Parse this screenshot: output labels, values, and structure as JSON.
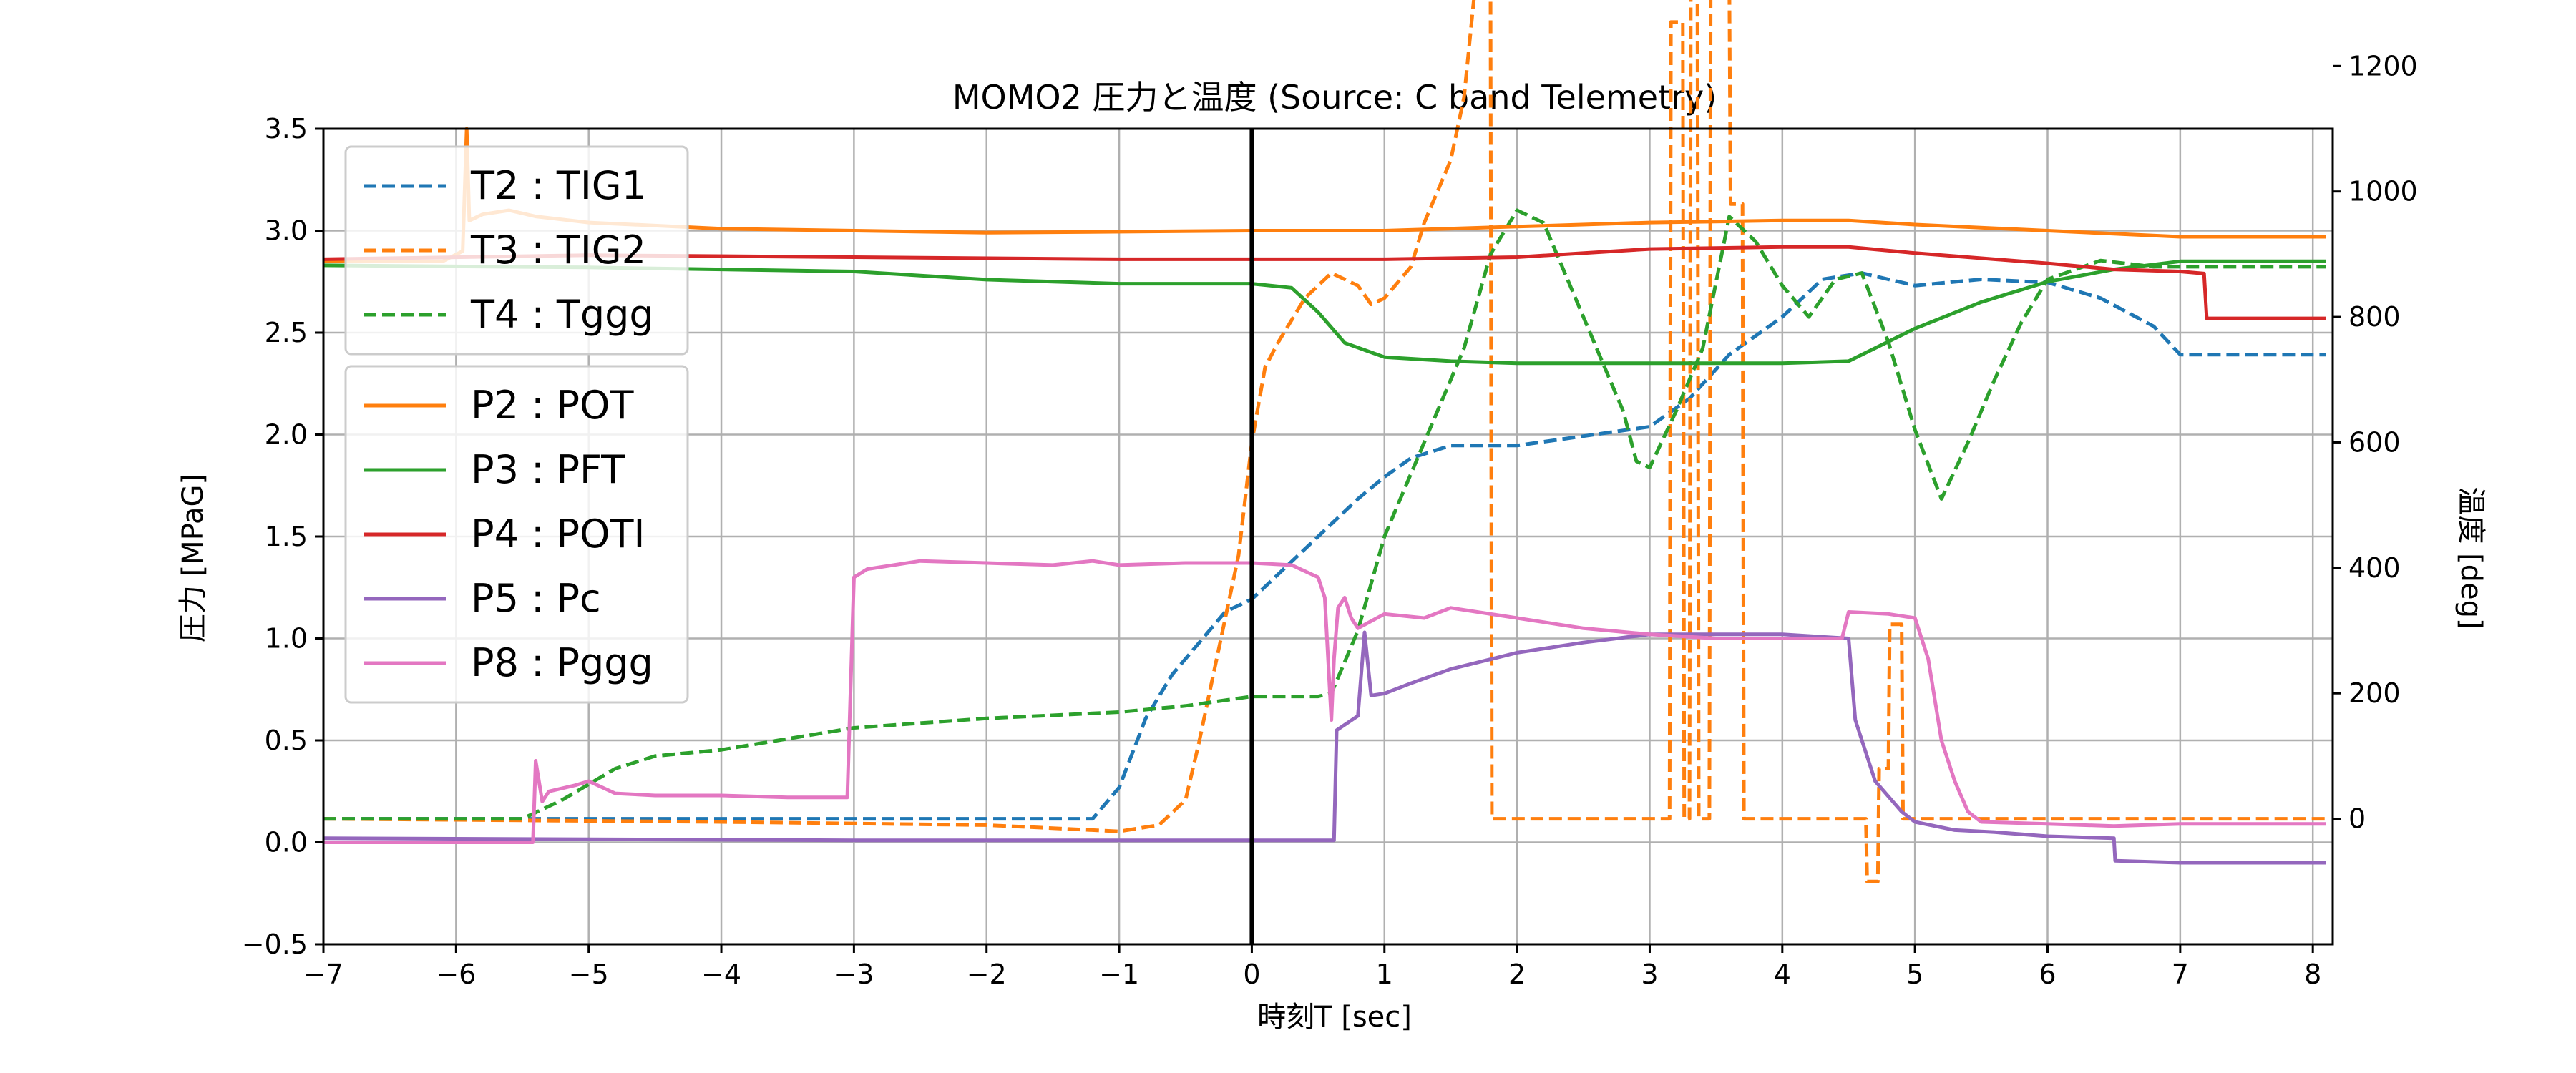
{
  "chart_data": {
    "type": "line",
    "title": "MOMO2 圧力と温度 (Source: C band Telemetry)",
    "xlabel": "時刻T [sec]",
    "ylabel": "圧力 [MPaG]",
    "ylabel_right": "温度 [deg]",
    "xlim": [
      -7,
      8.15
    ],
    "ylim": [
      -0.5,
      3.5
    ],
    "ylim_right": [
      -200,
      1100
    ],
    "x_ticks": [
      -7,
      -6,
      -5,
      -4,
      -3,
      -2,
      -1,
      0,
      1,
      2,
      3,
      4,
      5,
      6,
      7,
      8
    ],
    "x_tick_labels": [
      "−7",
      "−6",
      "−5",
      "−4",
      "−3",
      "−2",
      "−1",
      "0",
      "1",
      "2",
      "3",
      "4",
      "5",
      "6",
      "7",
      "8"
    ],
    "y_ticks": [
      -0.5,
      0.0,
      0.5,
      1.0,
      1.5,
      2.0,
      2.5,
      3.0,
      3.5
    ],
    "y_tick_labels": [
      "−0.5",
      "0.0",
      "0.5",
      "1.0",
      "1.5",
      "2.0",
      "2.5",
      "3.0",
      "3.5"
    ],
    "y2_ticks": [
      0,
      200,
      400,
      600,
      800,
      1000,
      1200
    ],
    "y2_tick_labels": [
      "0",
      "200",
      "400",
      "600",
      "800",
      "1000",
      "1200"
    ],
    "grid": true,
    "vline_x": 0,
    "legend_placement": "top-left",
    "temperature_series": [
      {
        "name": "T2 : TIG1",
        "color": "#1f77b4",
        "dash": true,
        "axis": "right",
        "x": [
          -7,
          -1.5,
          -1.2,
          -1.0,
          -0.8,
          -0.6,
          -0.4,
          -0.2,
          0.0,
          0.2,
          0.4,
          0.6,
          0.8,
          1.0,
          1.2,
          1.5,
          2.0,
          2.5,
          3.0,
          3.3,
          3.6,
          4.0,
          4.3,
          4.6,
          5.0,
          5.5,
          6.0,
          6.4,
          6.8,
          7.0,
          8.1
        ],
        "y": [
          0,
          0,
          0,
          50,
          160,
          230,
          280,
          330,
          350,
          390,
          430,
          470,
          510,
          545,
          575,
          595,
          595,
          610,
          625,
          670,
          740,
          800,
          860,
          870,
          850,
          860,
          855,
          830,
          785,
          740,
          740
        ]
      },
      {
        "name": "T3 : TIG2",
        "color": "#ff7f0e",
        "dash": true,
        "axis": "right",
        "x": [
          -7,
          -4,
          -2,
          -1,
          -0.7,
          -0.5,
          -0.4,
          -0.3,
          -0.2,
          -0.1,
          0.0,
          0.1,
          0.2,
          0.4,
          0.6,
          0.8,
          0.9,
          1.0,
          1.2,
          1.3,
          1.5,
          1.6,
          1.7,
          1.78,
          1.8,
          1.81,
          3.15,
          3.16,
          3.25,
          3.26,
          3.3,
          3.31,
          3.36,
          3.37,
          3.45,
          3.46,
          3.6,
          3.61,
          3.7,
          3.71,
          4.63,
          4.64,
          4.72,
          4.73,
          4.8,
          4.81,
          4.9,
          4.91,
          8.1
        ],
        "y": [
          0,
          -5,
          -10,
          -20,
          -10,
          30,
          120,
          220,
          320,
          420,
          600,
          720,
          760,
          830,
          870,
          850,
          820,
          830,
          880,
          950,
          1050,
          1150,
          1360,
          1360,
          1360,
          0,
          0,
          1270,
          1270,
          0,
          0,
          1340,
          1340,
          0,
          0,
          1350,
          1350,
          980,
          980,
          0,
          0,
          -100,
          -100,
          80,
          80,
          310,
          310,
          0,
          0
        ]
      },
      {
        "name": "T4 : Tggg",
        "color": "#2ca02c",
        "dash": true,
        "axis": "right",
        "x": [
          -7,
          -5.5,
          -5.2,
          -4.8,
          -4.5,
          -4.0,
          -3.0,
          -2.0,
          -1.0,
          -0.5,
          0.0,
          0.5,
          0.6,
          0.7,
          0.8,
          1.0,
          1.2,
          1.4,
          1.6,
          1.8,
          2.0,
          2.2,
          2.4,
          2.6,
          2.8,
          2.9,
          3.0,
          3.2,
          3.4,
          3.6,
          3.8,
          4.0,
          4.2,
          4.4,
          4.6,
          4.8,
          5.0,
          5.2,
          5.4,
          5.6,
          5.8,
          6.0,
          6.4,
          6.8,
          8.1
        ],
        "y": [
          0,
          0,
          30,
          80,
          100,
          110,
          145,
          160,
          170,
          180,
          195,
          195,
          200,
          250,
          300,
          450,
          550,
          650,
          750,
          900,
          970,
          950,
          850,
          750,
          650,
          570,
          560,
          650,
          750,
          960,
          920,
          850,
          800,
          860,
          870,
          760,
          620,
          510,
          600,
          700,
          790,
          860,
          890,
          880,
          880
        ]
      }
    ],
    "pressure_series": [
      {
        "name": "P2 : POT",
        "color": "#ff7f0e",
        "dash": false,
        "axis": "left",
        "x": [
          -7,
          -6.1,
          -5.95,
          -5.92,
          -5.9,
          -5.8,
          -5.6,
          -5.4,
          -5.0,
          -4.0,
          -2.0,
          0.0,
          1.0,
          2.0,
          3.0,
          4.0,
          4.5,
          5.0,
          6.0,
          7.0,
          8.1
        ],
        "y": [
          2.85,
          2.85,
          2.9,
          3.5,
          3.05,
          3.08,
          3.1,
          3.07,
          3.04,
          3.01,
          2.99,
          3.0,
          3.0,
          3.02,
          3.04,
          3.05,
          3.05,
          3.03,
          3.0,
          2.97,
          2.97
        ]
      },
      {
        "name": "P3 : PFT",
        "color": "#2ca02c",
        "dash": false,
        "axis": "left",
        "x": [
          -7,
          -5,
          -3,
          -2,
          -1,
          0.0,
          0.3,
          0.5,
          0.7,
          1.0,
          1.5,
          2.0,
          3.0,
          4.0,
          4.5,
          5.0,
          5.5,
          6.0,
          6.5,
          7.0,
          8.1
        ],
        "y": [
          2.83,
          2.82,
          2.8,
          2.76,
          2.74,
          2.74,
          2.72,
          2.6,
          2.45,
          2.38,
          2.36,
          2.35,
          2.35,
          2.35,
          2.36,
          2.52,
          2.65,
          2.75,
          2.81,
          2.85,
          2.85
        ]
      },
      {
        "name": "P4 : POTI",
        "color": "#d62728",
        "dash": false,
        "axis": "left",
        "x": [
          -7,
          -5,
          -3,
          -1,
          0,
          1.0,
          2.0,
          3.0,
          4.0,
          4.5,
          5.0,
          6.0,
          6.5,
          7.0,
          7.18,
          7.2,
          8.1
        ],
        "y": [
          2.86,
          2.88,
          2.87,
          2.86,
          2.86,
          2.86,
          2.87,
          2.91,
          2.92,
          2.92,
          2.89,
          2.84,
          2.81,
          2.8,
          2.79,
          2.57,
          2.57
        ]
      },
      {
        "name": "P5 : Pc",
        "color": "#9467bd",
        "dash": false,
        "axis": "left",
        "x": [
          -7,
          -3,
          0,
          0.62,
          0.64,
          0.8,
          0.85,
          0.9,
          1.0,
          1.2,
          1.5,
          2.0,
          2.5,
          3.0,
          3.5,
          4.0,
          4.5,
          4.55,
          4.7,
          4.9,
          5.0,
          5.3,
          5.6,
          6.0,
          6.5,
          6.51,
          7.0,
          8.1
        ],
        "y": [
          0.02,
          0.01,
          0.01,
          0.01,
          0.55,
          0.62,
          1.03,
          0.72,
          0.73,
          0.78,
          0.85,
          0.93,
          0.98,
          1.02,
          1.02,
          1.02,
          1.0,
          0.6,
          0.3,
          0.15,
          0.1,
          0.06,
          0.05,
          0.03,
          0.02,
          -0.09,
          -0.1,
          -0.1
        ]
      },
      {
        "name": "P8 : Pggg",
        "color": "#e377c2",
        "dash": false,
        "axis": "left",
        "x": [
          -7,
          -5.42,
          -5.4,
          -5.35,
          -5.3,
          -5.1,
          -5.0,
          -4.8,
          -4.5,
          -4.0,
          -3.5,
          -3.05,
          -3.0,
          -2.9,
          -2.5,
          -2.0,
          -1.5,
          -1.2,
          -1.0,
          -0.5,
          0.0,
          0.3,
          0.5,
          0.55,
          0.6,
          0.62,
          0.65,
          0.7,
          0.75,
          0.8,
          1.0,
          1.3,
          1.5,
          2.0,
          2.5,
          3.0,
          3.5,
          4.0,
          4.45,
          4.5,
          4.8,
          5.0,
          5.1,
          5.2,
          5.3,
          5.4,
          5.5,
          6.0,
          6.5,
          7.0,
          8.1
        ],
        "y": [
          0.0,
          0.0,
          0.4,
          0.2,
          0.25,
          0.28,
          0.3,
          0.24,
          0.23,
          0.23,
          0.22,
          0.22,
          1.3,
          1.34,
          1.38,
          1.37,
          1.36,
          1.38,
          1.36,
          1.37,
          1.37,
          1.36,
          1.3,
          1.2,
          0.6,
          0.9,
          1.15,
          1.2,
          1.1,
          1.05,
          1.12,
          1.1,
          1.15,
          1.1,
          1.05,
          1.02,
          1.0,
          1.0,
          1.0,
          1.13,
          1.12,
          1.1,
          0.9,
          0.5,
          0.3,
          0.15,
          0.1,
          0.09,
          0.08,
          0.09,
          0.09
        ]
      }
    ]
  }
}
